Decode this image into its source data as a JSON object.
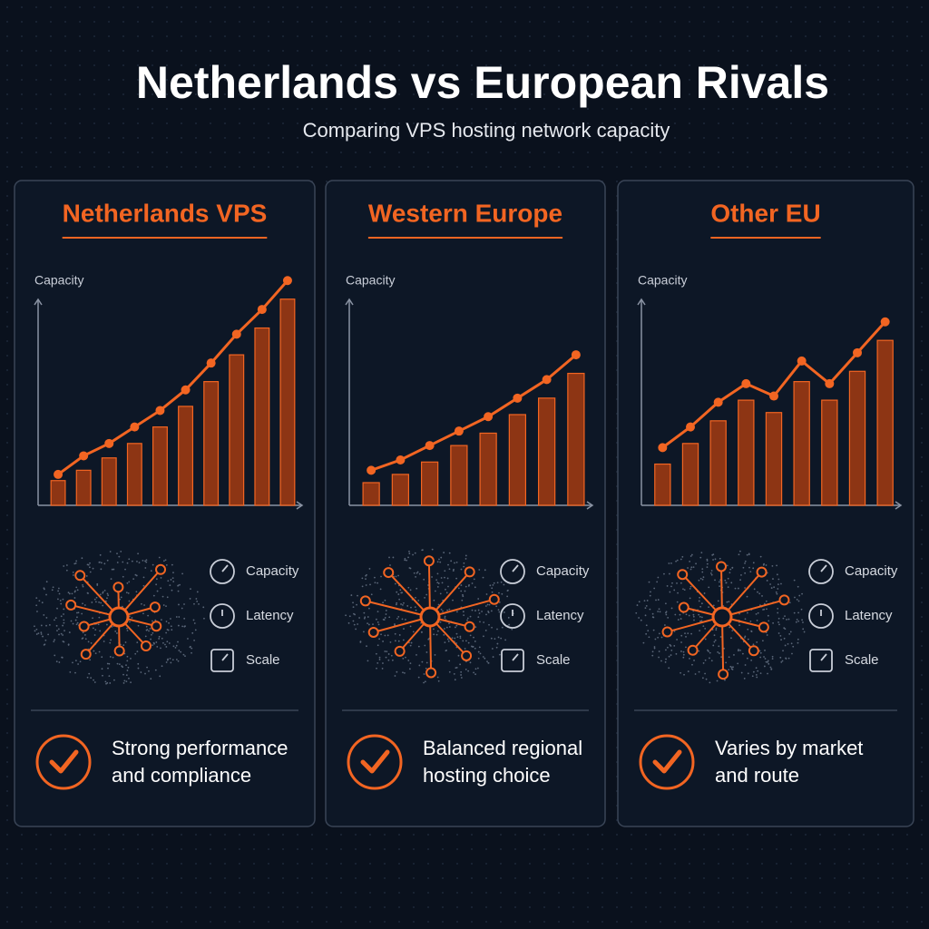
{
  "title": "Netherlands vs European Rivals",
  "subtitle": "Comparing VPS hosting network capacity",
  "chart_data": [
    {
      "type": "bar",
      "title": "Netherlands VPS",
      "y_label": "Capacity",
      "ylim": [
        0,
        110
      ],
      "color": "#b8400f",
      "values": [
        12,
        17,
        23,
        30,
        38,
        48,
        60,
        73,
        86,
        100
      ],
      "line": {
        "color": "#f26522",
        "values": [
          15,
          24,
          30,
          38,
          46,
          56,
          69,
          83,
          95,
          109
        ]
      },
      "legend_items": [
        "Capacity",
        "Latency",
        "Scale"
      ],
      "summary": [
        "Strong performance",
        "and compliance"
      ]
    },
    {
      "type": "bar",
      "title": "Western Europe",
      "y_label": "Capacity",
      "ylim": [
        0,
        110
      ],
      "color": "#b8400f",
      "values": [
        11,
        15,
        21,
        29,
        35,
        44,
        52,
        64
      ],
      "line": {
        "color": "#f26522",
        "values": [
          17,
          22,
          29,
          36,
          43,
          52,
          61,
          73
        ]
      },
      "legend_items": [
        "Capacity",
        "Latency",
        "Scale"
      ],
      "summary": [
        "Balanced regional",
        "hosting choice"
      ]
    },
    {
      "type": "bar",
      "title": "Other EU",
      "y_label": "Capacity",
      "ylim": [
        0,
        110
      ],
      "color": "#b8400f",
      "values": [
        20,
        30,
        41,
        51,
        45,
        60,
        51,
        65,
        80
      ],
      "line": {
        "color": "#f26522",
        "values": [
          28,
          38,
          50,
          59,
          53,
          70,
          59,
          74,
          89
        ]
      },
      "legend_items": [
        "Capacity",
        "Latency",
        "Scale"
      ],
      "summary": [
        "Varies by market",
        "and route"
      ]
    }
  ]
}
